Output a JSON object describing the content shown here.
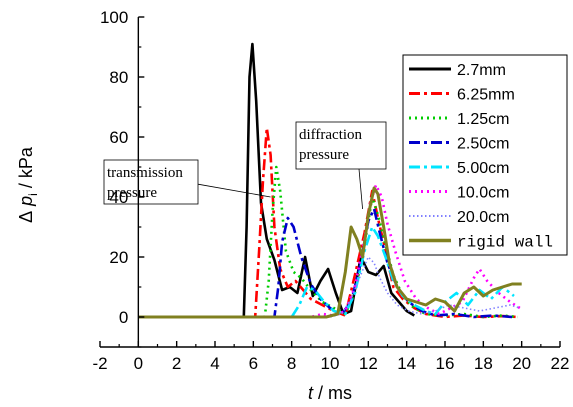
{
  "chart_data": {
    "type": "line",
    "xlim": [
      -2,
      22
    ],
    "ylim": [
      -10,
      100
    ],
    "x_ticks": [
      -2,
      0,
      2,
      4,
      6,
      8,
      10,
      12,
      14,
      16,
      18,
      20,
      22
    ],
    "y_ticks": [
      0,
      20,
      40,
      60,
      80,
      100
    ],
    "xlabel": {
      "var": "t",
      "unit": " / ms"
    },
    "ylabel": {
      "prefix": "Δ",
      "var": "p",
      "sub": "i",
      "unit": " / kPa"
    },
    "annotations": [
      {
        "lines": [
          "transmission",
          "pressure"
        ],
        "target": [
          6.9,
          40
        ]
      },
      {
        "lines": [
          "diffraction",
          "pressure"
        ],
        "target": [
          11.7,
          36
        ]
      }
    ],
    "legend_position": "right",
    "series": [
      {
        "name": "2.7mm",
        "color": "#000000",
        "style": "solid",
        "x": [
          0,
          5.5,
          5.65,
          5.8,
          5.95,
          6.15,
          6.4,
          6.7,
          7.1,
          7.5,
          7.9,
          8.3,
          8.7,
          9.1,
          9.5,
          9.9,
          10.3,
          10.7,
          11.1,
          11.6,
          12.0,
          12.4,
          12.8,
          13.2,
          13.6,
          14.0,
          14.4
        ],
        "y": [
          0,
          0,
          30,
          80,
          91,
          72,
          38,
          26,
          19,
          9,
          10,
          8,
          20,
          7,
          12,
          16,
          8,
          1,
          2,
          20,
          15,
          14,
          17,
          8,
          5,
          2,
          0.5
        ]
      },
      {
        "name": "6.25mm",
        "color": "#ff0000",
        "style": "dashdot",
        "x": [
          0,
          6.1,
          6.3,
          6.5,
          6.7,
          6.9,
          7.1,
          7.4,
          7.8,
          8.2,
          8.6,
          9.0,
          9.6,
          10.2,
          10.8,
          11.3,
          11.8,
          12.2,
          12.5,
          12.9,
          13.3,
          13.8,
          14.4,
          15.0,
          16.0,
          17.0,
          18.0,
          19.0,
          19.8
        ],
        "y": [
          0,
          0,
          22,
          45,
          63,
          54,
          30,
          16,
          10,
          12,
          9,
          6,
          4,
          2,
          0.5,
          14,
          28,
          42,
          33,
          22,
          10,
          6,
          3,
          1,
          0,
          0.5,
          0,
          0.3,
          0
        ]
      },
      {
        "name": "1.25cm",
        "color": "#00cc00",
        "style": "dotted",
        "x": [
          0,
          6.6,
          6.8,
          7.0,
          7.2,
          7.4,
          7.7,
          8.1,
          8.5,
          9.0,
          9.6,
          10.2,
          10.8,
          11.3,
          11.8,
          12.2,
          12.5,
          12.9,
          13.3,
          13.8,
          14.4,
          15.0,
          16.0,
          17.0,
          18.0,
          19.0,
          19.8
        ],
        "y": [
          0,
          0,
          12,
          35,
          50,
          42,
          22,
          15,
          13,
          9,
          5,
          3,
          1,
          8,
          24,
          40,
          34,
          24,
          14,
          7,
          3,
          1,
          0.5,
          1,
          0,
          0.5,
          0
        ]
      },
      {
        "name": "2.50cm",
        "color": "#0000cc",
        "style": "dashdot",
        "x": [
          0,
          7.1,
          7.3,
          7.5,
          7.8,
          8.1,
          8.5,
          9.0,
          9.5,
          10.0,
          10.6,
          11.1,
          11.6,
          12.0,
          12.3,
          12.6,
          13.0,
          13.5,
          14.1,
          14.8,
          15.5,
          16.5,
          17.5,
          18.5,
          19.5
        ],
        "y": [
          0,
          0,
          10,
          25,
          33,
          30,
          20,
          11,
          6,
          3,
          1,
          5,
          18,
          32,
          36,
          28,
          18,
          10,
          5,
          2,
          0.5,
          1,
          0,
          0.5,
          0
        ]
      },
      {
        "name": "5.00cm",
        "color": "#00e5ff",
        "style": "dashdot",
        "x": [
          0,
          8.0,
          8.4,
          8.8,
          9.2,
          9.7,
          10.2,
          10.8,
          11.3,
          11.8,
          12.2,
          12.5,
          12.9,
          13.3,
          13.8,
          14.4,
          15.0,
          15.5,
          16.0,
          16.6,
          17.2,
          17.8,
          18.4,
          19.0,
          19.6
        ],
        "y": [
          0,
          0,
          4,
          10,
          9,
          5,
          2,
          1,
          8,
          22,
          30,
          27,
          20,
          12,
          7,
          4,
          2,
          1,
          5,
          8,
          4,
          9,
          6,
          10,
          7
        ]
      },
      {
        "name": "10.0cm",
        "color": "#ff00ff",
        "style": "dotted",
        "x": [
          0,
          9.0,
          9.6,
          10.2,
          10.8,
          11.3,
          11.8,
          12.1,
          12.4,
          12.7,
          13.0,
          13.4,
          13.9,
          14.5,
          15.1,
          15.7,
          16.3,
          16.9,
          17.5,
          17.8,
          18.2,
          18.8,
          19.4,
          19.9
        ],
        "y": [
          0,
          0,
          1,
          0.5,
          2,
          10,
          26,
          38,
          44,
          40,
          31,
          22,
          12,
          6,
          3,
          1,
          3,
          5,
          13,
          16,
          12,
          8,
          5,
          3
        ]
      },
      {
        "name": "20.0cm",
        "color": "#8080ff",
        "style": "fine-dotted",
        "x": [
          0,
          10.0,
          10.6,
          11.1,
          11.6,
          12.0,
          12.3,
          12.6,
          13.0,
          13.5,
          14.1,
          14.8,
          15.5,
          16.2,
          17.0,
          17.8,
          18.6,
          19.4,
          19.9
        ],
        "y": [
          0,
          0,
          1,
          6,
          14,
          20,
          18,
          13,
          8,
          4,
          2,
          1,
          2,
          4,
          3,
          2,
          3,
          4,
          3
        ]
      },
      {
        "name": "rigid wall",
        "color": "#808020",
        "style": "solid-thick",
        "x": [
          0,
          9.8,
          10.4,
          10.8,
          11.1,
          11.4,
          11.7,
          12.0,
          12.3,
          12.5,
          12.8,
          13.1,
          13.5,
          14.0,
          14.5,
          15.0,
          15.5,
          16.0,
          16.5,
          17.0,
          17.5,
          18.0,
          18.5,
          19.0,
          19.5,
          20.0
        ],
        "y": [
          0,
          0,
          1,
          15,
          30,
          26,
          20,
          34,
          43,
          41,
          30,
          18,
          10,
          6,
          5,
          4,
          6,
          5,
          2,
          8,
          10,
          7,
          9,
          10,
          11,
          11
        ]
      }
    ]
  }
}
